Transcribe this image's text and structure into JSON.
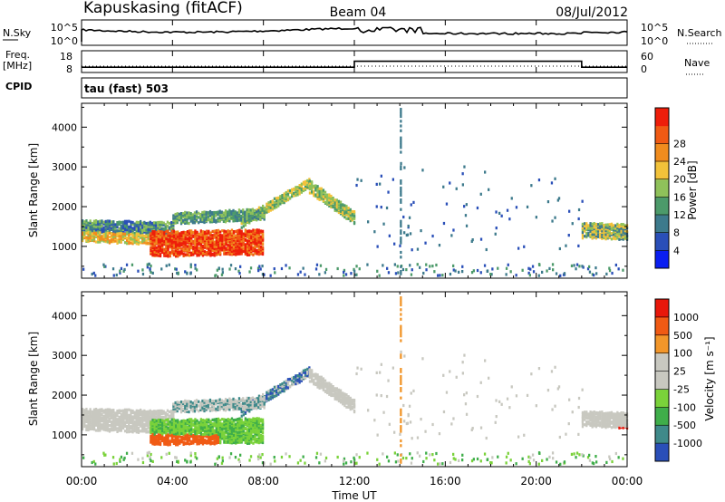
{
  "header": {
    "station": "Kapuskasing (fitACF)",
    "beam": "Beam 04",
    "date": "08/Jul/2012"
  },
  "panel_labels": {
    "nsky": "N.Sky",
    "nsearch": "N.Search",
    "freq": "Freq.",
    "freq_unit": "[MHz]",
    "nave": "Nave",
    "cpid": "CPID",
    "cpid_value": "tau (fast) 503"
  },
  "small_ticks": {
    "nsky_top": "10^5",
    "nsky_bottom": "10^0",
    "nsearch_top": "10^5",
    "nsearch_bottom": "10^0",
    "freq_top": "18",
    "freq_bottom": "8",
    "nave_top": "60",
    "nave_bottom": "0"
  },
  "colors": {
    "power": [
      "#0a1ef0",
      "#2a4fb8",
      "#3d7a8c",
      "#4c9a6a",
      "#8fc15a",
      "#f2c23a",
      "#f08c1e",
      "#f05a14",
      "#ee1e0a"
    ],
    "velocity": [
      "#e8170a",
      "#f05a14",
      "#f2962a",
      "#c8c8c0",
      "#c8c8c0",
      "#7ad23a",
      "#3fae4a",
      "#3f8a8a",
      "#2a4fb8"
    ]
  },
  "chart_data": [
    {
      "type": "heatmap",
      "name": "power",
      "ylabel": "Slant Range [km]",
      "colorbar_label": "Power [dB]",
      "yticks": [
        1000,
        2000,
        3000,
        4000
      ],
      "ylim": [
        200,
        4600
      ],
      "colorbar_ticks": [
        "4",
        "8",
        "12",
        "16",
        "20",
        "24",
        "28"
      ]
    },
    {
      "type": "heatmap",
      "name": "velocity",
      "ylabel": "Slant Range [km]",
      "colorbar_label": "Velocity [m s⁻¹]",
      "yticks": [
        1000,
        2000,
        3000,
        4000
      ],
      "ylim": [
        200,
        4600
      ],
      "colorbar_ticks": [
        "1000",
        "500",
        "100",
        "25",
        "-25",
        "-100",
        "-500",
        "-1000"
      ]
    }
  ],
  "time_axis": {
    "xlabel": "Time UT",
    "ticks": [
      "00:00",
      "04:00",
      "08:00",
      "12:00",
      "16:00",
      "20:00",
      "00:00"
    ],
    "hours": [
      0,
      24
    ]
  },
  "lines": {
    "freq_step_hours": [
      12,
      22
    ],
    "freq_low": 10.2,
    "freq_high": 13.2
  }
}
